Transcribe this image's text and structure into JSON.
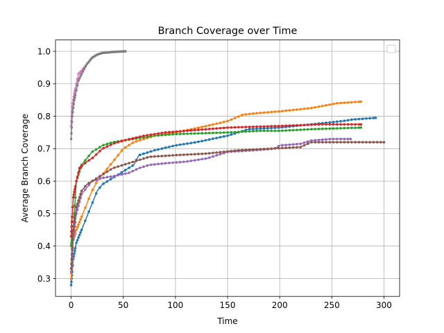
{
  "chart_data": {
    "type": "line",
    "title": "Branch Coverage over Time",
    "xlabel": "Time",
    "ylabel": "Average Branch Coverage",
    "xlim": [
      -15,
      315
    ],
    "ylim": [
      0.245,
      1.035
    ],
    "xticks": [
      0,
      50,
      100,
      150,
      200,
      250,
      300
    ],
    "xtick_labels": [
      "0",
      "50",
      "100",
      "150",
      "200",
      "250",
      "300"
    ],
    "yticks": [
      0.3,
      0.4,
      0.5,
      0.6,
      0.7,
      0.8,
      0.9,
      1.0
    ],
    "ytick_labels": [
      "0.3",
      "0.4",
      "0.5",
      "0.6",
      "0.7",
      "0.8",
      "0.9",
      "1.0"
    ],
    "grid": true,
    "legend": "top-right, empty",
    "series": [
      {
        "color": "#1f77b4",
        "x_max": 292,
        "points": [
          [
            0,
            0.28
          ],
          [
            2,
            0.36
          ],
          [
            5,
            0.41
          ],
          [
            10,
            0.45
          ],
          [
            15,
            0.49
          ],
          [
            20,
            0.53
          ],
          [
            25,
            0.57
          ],
          [
            30,
            0.59
          ],
          [
            40,
            0.61
          ],
          [
            50,
            0.63
          ],
          [
            60,
            0.65
          ],
          [
            65,
            0.68
          ],
          [
            70,
            0.685
          ],
          [
            80,
            0.695
          ],
          [
            100,
            0.71
          ],
          [
            120,
            0.72
          ],
          [
            150,
            0.74
          ],
          [
            170,
            0.76
          ],
          [
            200,
            0.765
          ],
          [
            230,
            0.775
          ],
          [
            260,
            0.785
          ],
          [
            270,
            0.79
          ],
          [
            292,
            0.795
          ]
        ]
      },
      {
        "color": "#ff7f0e",
        "x_max": 278,
        "points": [
          [
            0,
            0.3
          ],
          [
            2,
            0.42
          ],
          [
            5,
            0.45
          ],
          [
            10,
            0.49
          ],
          [
            15,
            0.53
          ],
          [
            20,
            0.57
          ],
          [
            25,
            0.6
          ],
          [
            30,
            0.62
          ],
          [
            40,
            0.66
          ],
          [
            50,
            0.7
          ],
          [
            55,
            0.71
          ],
          [
            60,
            0.72
          ],
          [
            70,
            0.73
          ],
          [
            80,
            0.74
          ],
          [
            100,
            0.75
          ],
          [
            130,
            0.77
          ],
          [
            150,
            0.785
          ],
          [
            165,
            0.805
          ],
          [
            180,
            0.81
          ],
          [
            200,
            0.815
          ],
          [
            230,
            0.825
          ],
          [
            255,
            0.84
          ],
          [
            278,
            0.845
          ]
        ]
      },
      {
        "color": "#2ca02c",
        "x_max": 278,
        "points": [
          [
            0,
            0.4
          ],
          [
            2,
            0.45
          ],
          [
            5,
            0.6
          ],
          [
            10,
            0.65
          ],
          [
            15,
            0.67
          ],
          [
            20,
            0.69
          ],
          [
            25,
            0.7
          ],
          [
            30,
            0.71
          ],
          [
            40,
            0.72
          ],
          [
            60,
            0.73
          ],
          [
            80,
            0.74
          ],
          [
            100,
            0.745
          ],
          [
            150,
            0.75
          ],
          [
            180,
            0.755
          ],
          [
            200,
            0.755
          ],
          [
            230,
            0.76
          ],
          [
            278,
            0.765
          ]
        ]
      },
      {
        "color": "#d62728",
        "x_max": 278,
        "points": [
          [
            0,
            0.43
          ],
          [
            2,
            0.55
          ],
          [
            5,
            0.6
          ],
          [
            8,
            0.64
          ],
          [
            15,
            0.66
          ],
          [
            20,
            0.67
          ],
          [
            30,
            0.7
          ],
          [
            40,
            0.715
          ],
          [
            50,
            0.725
          ],
          [
            70,
            0.74
          ],
          [
            90,
            0.75
          ],
          [
            110,
            0.755
          ],
          [
            130,
            0.76
          ],
          [
            150,
            0.765
          ],
          [
            200,
            0.77
          ],
          [
            240,
            0.775
          ],
          [
            278,
            0.775
          ]
        ]
      },
      {
        "color": "#9467bd",
        "x_max": 268,
        "points": [
          [
            0,
            0.32
          ],
          [
            2,
            0.42
          ],
          [
            5,
            0.5
          ],
          [
            10,
            0.56
          ],
          [
            15,
            0.58
          ],
          [
            20,
            0.6
          ],
          [
            30,
            0.61
          ],
          [
            40,
            0.615
          ],
          [
            55,
            0.625
          ],
          [
            65,
            0.64
          ],
          [
            75,
            0.65
          ],
          [
            90,
            0.655
          ],
          [
            110,
            0.66
          ],
          [
            130,
            0.67
          ],
          [
            150,
            0.69
          ],
          [
            175,
            0.695
          ],
          [
            195,
            0.7
          ],
          [
            200,
            0.71
          ],
          [
            220,
            0.715
          ],
          [
            230,
            0.725
          ],
          [
            250,
            0.73
          ],
          [
            268,
            0.73
          ]
        ]
      },
      {
        "color": "#8c564b",
        "x_max": 300,
        "points": [
          [
            0,
            0.33
          ],
          [
            2,
            0.45
          ],
          [
            5,
            0.52
          ],
          [
            10,
            0.57
          ],
          [
            15,
            0.59
          ],
          [
            20,
            0.6
          ],
          [
            30,
            0.62
          ],
          [
            40,
            0.64
          ],
          [
            50,
            0.65
          ],
          [
            60,
            0.66
          ],
          [
            75,
            0.675
          ],
          [
            100,
            0.68
          ],
          [
            130,
            0.685
          ],
          [
            160,
            0.695
          ],
          [
            190,
            0.7
          ],
          [
            220,
            0.705
          ],
          [
            230,
            0.72
          ],
          [
            260,
            0.72
          ],
          [
            300,
            0.72
          ]
        ]
      },
      {
        "color": "#e377c2",
        "x_max": 52,
        "points": [
          [
            0,
            0.77
          ],
          [
            1,
            0.83
          ],
          [
            3,
            0.87
          ],
          [
            5,
            0.9
          ],
          [
            7,
            0.93
          ],
          [
            10,
            0.94
          ],
          [
            15,
            0.96
          ],
          [
            20,
            0.98
          ],
          [
            25,
            0.99
          ],
          [
            30,
            0.995
          ],
          [
            40,
            0.998
          ],
          [
            52,
            1.0
          ]
        ]
      },
      {
        "color": "#7f7f7f",
        "x_max": 52,
        "points": [
          [
            0,
            0.73
          ],
          [
            1,
            0.8
          ],
          [
            3,
            0.85
          ],
          [
            5,
            0.88
          ],
          [
            7,
            0.91
          ],
          [
            10,
            0.93
          ],
          [
            15,
            0.96
          ],
          [
            20,
            0.98
          ],
          [
            25,
            0.99
          ],
          [
            30,
            0.995
          ],
          [
            40,
            0.998
          ],
          [
            52,
            1.0
          ]
        ]
      }
    ]
  }
}
